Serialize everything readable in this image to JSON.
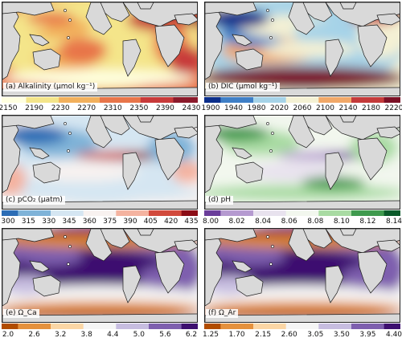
{
  "colors": {
    "land": "#d9d9d9",
    "coast": "#1a1a1a",
    "alk": [
      "#ffffe0",
      "#f4e58a",
      "#f2b05c",
      "#e8754a",
      "#c83a3a",
      "#8b1a2b"
    ],
    "dic": [
      "#0b2e8a",
      "#3f7fc6",
      "#a6d3e8",
      "#f4f1d4",
      "#f1a868",
      "#c43a3a",
      "#7a0f25"
    ],
    "pco2": [
      "#2c6db5",
      "#7fb3d8",
      "#d5e6f2",
      "#f8f2f0",
      "#f4b3a0",
      "#d14a3c",
      "#8b0d16"
    ],
    "ph": [
      "#6a3d9a",
      "#b59ad0",
      "#e8e2ee",
      "#f2f7ee",
      "#a9dba3",
      "#3f9a4e",
      "#0b5a2a"
    ],
    "omega": [
      "#b14c00",
      "#e5913d",
      "#fbd6a5",
      "#f5f5f5",
      "#c7bde0",
      "#7e5fae",
      "#3d0f6f"
    ]
  },
  "panels": [
    {
      "id": "alkalinity",
      "label": "(a) Alkalinity (μmol kg⁻¹)",
      "palette": "alk",
      "ticks": [
        "2150",
        "2190",
        "2230",
        "2270",
        "2310",
        "2350",
        "2390",
        "2430"
      ]
    },
    {
      "id": "dic",
      "label": "(b) DIC (μmol kg⁻¹)",
      "palette": "dic",
      "ticks": [
        "1900",
        "1940",
        "1980",
        "2020",
        "2060",
        "2100",
        "2140",
        "2180",
        "2220"
      ]
    },
    {
      "id": "pco2",
      "label": "(c) pCO₂ (μatm)",
      "palette": "pco2",
      "ticks": [
        "300",
        "315",
        "330",
        "345",
        "360",
        "375",
        "390",
        "405",
        "420",
        "435"
      ]
    },
    {
      "id": "ph",
      "label": "(d) pH",
      "palette": "ph",
      "ticks": [
        "8.00",
        "8.02",
        "8.04",
        "8.06",
        "8.08",
        "8.10",
        "8.12",
        "8.14"
      ]
    },
    {
      "id": "omega-ca",
      "label": "(e) Ω_Ca",
      "palette": "omega",
      "ticks": [
        "2.0",
        "2.6",
        "3.2",
        "3.8",
        "4.4",
        "5.0",
        "5.6",
        "6.2"
      ]
    },
    {
      "id": "omega-ar",
      "label": "(f) Ω_Ar",
      "palette": "omega",
      "ticks": [
        "1.25",
        "1.70",
        "2.15",
        "2.60",
        "3.05",
        "3.50",
        "3.95",
        "4.40"
      ]
    }
  ]
}
